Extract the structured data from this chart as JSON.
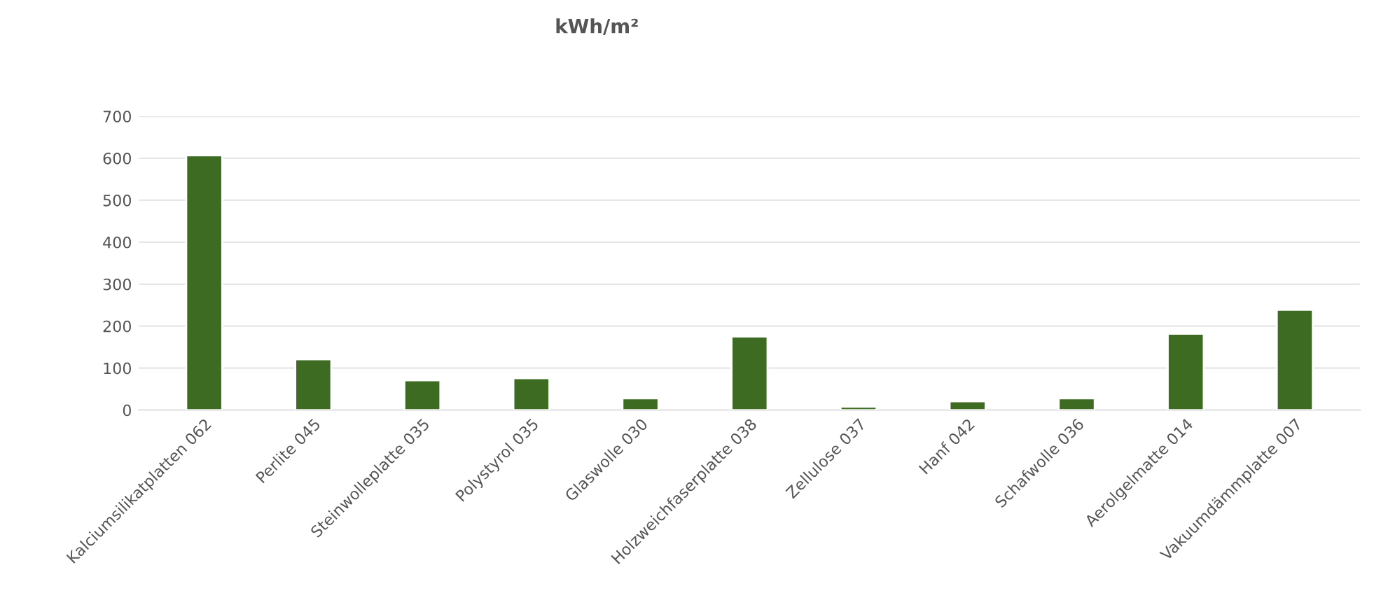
{
  "chart_data": {
    "type": "bar",
    "title": "kWh/m²",
    "categories": [
      "Kalciumsilikatplatten 062",
      "Perlite 045",
      "Steinwolleplatte 035",
      "Polystyrol 035",
      "Glaswolle 030",
      "Holzweichfaserplatte 038",
      "Zellulose 037",
      "Hanf 042",
      "Schafwolle 036",
      "Aerolgelmatte 014",
      "Vakuumdämmplatte 007"
    ],
    "values": [
      607,
      121,
      71,
      76,
      28,
      175,
      8,
      21,
      28,
      182,
      239
    ],
    "color": "#3d6b21",
    "ylim": [
      0,
      700
    ],
    "yticks": [
      0,
      100,
      200,
      300,
      400,
      500,
      600,
      700
    ],
    "grid": "y"
  }
}
